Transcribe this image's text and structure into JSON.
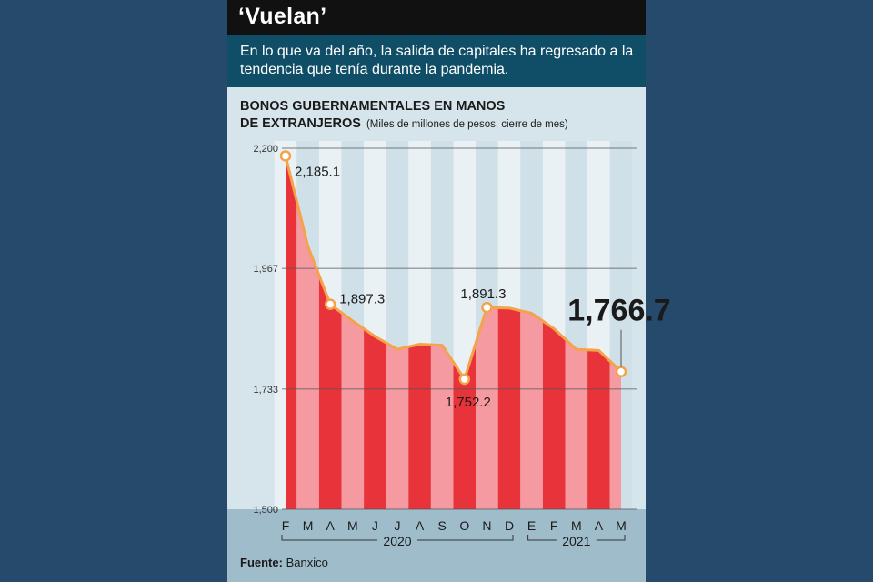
{
  "header": {
    "title": "‘Vuelan’",
    "subtitle": "En lo que va del año, la salida de capitales ha regresado a la tendencia que tenía durante la pandemia."
  },
  "chart_title": {
    "line1": "BONOS GUBERNAMENTALES EN MANOS",
    "line2": "DE EXTRANJEROS",
    "unit": "(Miles de millones de pesos, cierre de mes)"
  },
  "source": {
    "label": "Fuente:",
    "value": "Banxico"
  },
  "colors": {
    "bar_dark": "#e8333a",
    "bar_light": "#f49aa0",
    "line": "#f5a34a",
    "title_bg": "#111111",
    "subtitle_bg": "#0f4e66"
  },
  "chart_data": {
    "type": "area",
    "categories": [
      "F",
      "M",
      "A",
      "M",
      "J",
      "J",
      "A",
      "S",
      "O",
      "N",
      "D",
      "E",
      "F",
      "M",
      "A",
      "M"
    ],
    "values": [
      2185.1,
      2010,
      1897.3,
      1865,
      1835,
      1810,
      1820,
      1818,
      1752.2,
      1891.3,
      1890,
      1880,
      1850,
      1810,
      1808,
      1766.7
    ],
    "yticks": [
      "2,200",
      "1,967",
      "1,733",
      "1,500"
    ],
    "ytick_values": [
      2200,
      1967,
      1733,
      1500
    ],
    "ylim": [
      1500,
      2200
    ],
    "annotations": [
      {
        "index": 0,
        "text": "2,185.1"
      },
      {
        "index": 2,
        "text": "1,897.3"
      },
      {
        "index": 8,
        "text": "1,752.2"
      },
      {
        "index": 9,
        "text": "1,891.3"
      },
      {
        "index": 15,
        "text": "1,766.7"
      }
    ],
    "highlight_points": [
      0,
      2,
      8,
      9,
      15
    ],
    "year_groups": [
      {
        "label": "2020",
        "from": 0,
        "to": 10
      },
      {
        "label": "2021",
        "from": 11,
        "to": 15
      }
    ]
  }
}
